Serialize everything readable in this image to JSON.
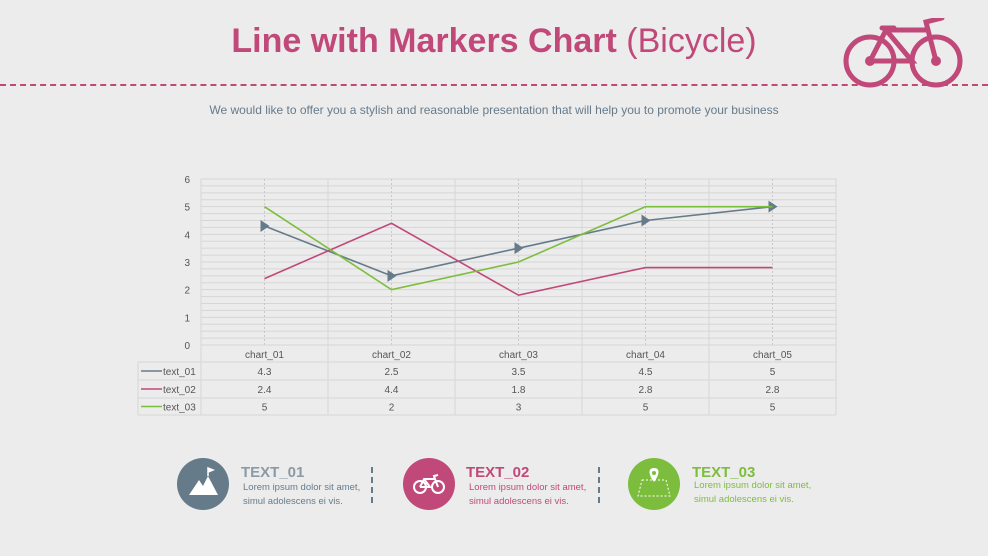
{
  "header": {
    "title_bold": "Line with Markers Chart",
    "title_light": "(Bicycle)",
    "subtitle": "We would like to offer you a stylish and reasonable presentation that will help you to promote your business",
    "logo_icon": "bicycle-icon"
  },
  "colors": {
    "accent": "#c0497a",
    "slate": "#667b8a",
    "green": "#7dbd3d"
  },
  "chart_data": {
    "type": "line",
    "categories": [
      "chart_01",
      "chart_02",
      "chart_03",
      "chart_04",
      "chart_05"
    ],
    "ylim": [
      0,
      6
    ],
    "yticks": [
      "0",
      "1",
      "2",
      "3",
      "4",
      "5",
      "6"
    ],
    "grid": true,
    "legend": "data-table",
    "series": [
      {
        "name": "text_01",
        "values": [
          4.3,
          2.5,
          3.5,
          4.5,
          5
        ],
        "color": "#667b8a",
        "marker": "triangle"
      },
      {
        "name": "text_02",
        "values": [
          2.4,
          4.4,
          1.8,
          2.8,
          2.8
        ],
        "color": "#c0497a"
      },
      {
        "name": "text_03",
        "values": [
          5,
          2,
          3,
          5,
          5
        ],
        "color": "#7dbd3d"
      }
    ],
    "table_values": [
      [
        "4.3",
        "2.5",
        "3.5",
        "4.5",
        "5"
      ],
      [
        "2.4",
        "4.4",
        "1.8",
        "2.8",
        "2.8"
      ],
      [
        "5",
        "2",
        "3",
        "5",
        "5"
      ]
    ]
  },
  "features": [
    {
      "title": "TEXT_01",
      "text1": "Lorem ipsum dolor sit amet,",
      "text2": "simul adolescens ei vis.",
      "icon": "mountain-flag-icon"
    },
    {
      "title": "TEXT_02",
      "text1": "Lorem ipsum dolor sit amet,",
      "text2": "simul adolescens ei vis.",
      "icon": "bicycle-icon"
    },
    {
      "title": "TEXT_03",
      "text1": "Lorem ipsum dolor sit amet,",
      "text2": "simul adolescens ei vis.",
      "icon": "map-pin-icon"
    }
  ]
}
